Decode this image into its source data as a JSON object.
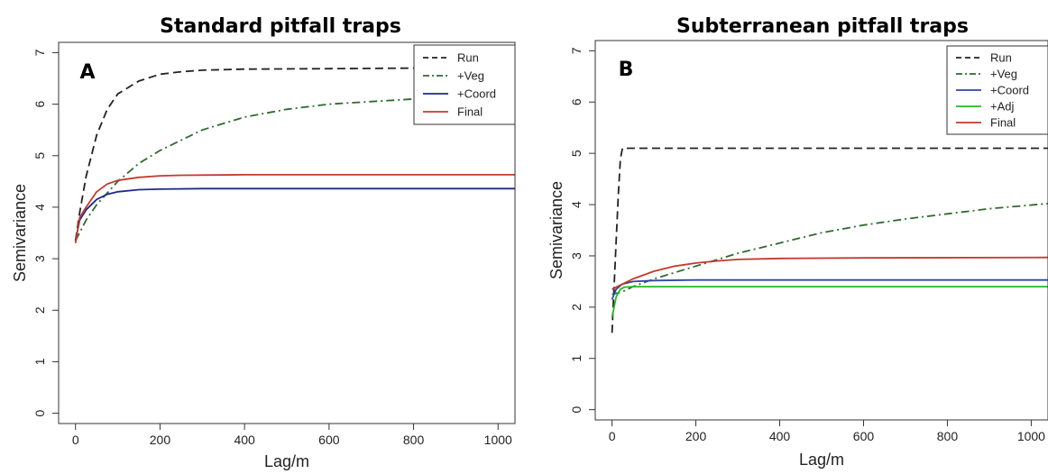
{
  "chart_data": [
    {
      "type": "line",
      "panel_label": "A",
      "title": "Standard pitfall traps",
      "xlabel": "Lag/m",
      "ylabel": "Semivariance",
      "xlim": [
        -40,
        1040
      ],
      "ylim": [
        -0.2,
        7.2
      ],
      "xticks": [
        0,
        200,
        400,
        600,
        800,
        1000
      ],
      "yticks": [
        0,
        1,
        2,
        3,
        4,
        5,
        6,
        7
      ],
      "grid": false,
      "legend_position": "top-right",
      "series": [
        {
          "name": "Run",
          "color": "#222222",
          "dash": "dashed",
          "x": [
            0,
            10,
            25,
            50,
            75,
            100,
            150,
            200,
            250,
            300,
            400,
            600,
            800,
            1040
          ],
          "y": [
            3.35,
            3.9,
            4.6,
            5.4,
            5.9,
            6.2,
            6.45,
            6.58,
            6.63,
            6.66,
            6.68,
            6.69,
            6.7,
            6.7
          ]
        },
        {
          "name": "+Veg",
          "color": "#2e6b2e",
          "dash": "dotdash",
          "x": [
            0,
            25,
            50,
            100,
            150,
            200,
            300,
            400,
            500,
            600,
            700,
            800,
            900,
            1040
          ],
          "y": [
            3.35,
            3.75,
            4.05,
            4.5,
            4.85,
            5.1,
            5.5,
            5.75,
            5.9,
            6.0,
            6.05,
            6.1,
            6.12,
            6.15
          ]
        },
        {
          "name": "+Coord",
          "color": "#1f2a8a",
          "dash": "solid",
          "x": [
            0,
            10,
            25,
            50,
            75,
            100,
            150,
            200,
            300,
            600,
            1040
          ],
          "y": [
            3.35,
            3.75,
            3.95,
            4.15,
            4.25,
            4.3,
            4.34,
            4.35,
            4.36,
            4.36,
            4.36
          ]
        },
        {
          "name": "Final",
          "color": "#c23a2e",
          "dash": "solid",
          "x": [
            0,
            10,
            25,
            50,
            75,
            100,
            150,
            200,
            250,
            400,
            1040
          ],
          "y": [
            3.3,
            3.8,
            4.0,
            4.3,
            4.45,
            4.52,
            4.58,
            4.61,
            4.62,
            4.63,
            4.63
          ]
        }
      ]
    },
    {
      "type": "line",
      "panel_label": "B",
      "title": "Subterranean pitfall traps",
      "xlabel": "Lag/m",
      "ylabel": "Semivariance",
      "xlim": [
        -40,
        1040
      ],
      "ylim": [
        -0.2,
        7.2
      ],
      "xticks": [
        0,
        200,
        400,
        600,
        800,
        1000
      ],
      "yticks": [
        0,
        1,
        2,
        3,
        4,
        5,
        6,
        7
      ],
      "grid": false,
      "legend_position": "top-right",
      "series": [
        {
          "name": "Run",
          "color": "#222222",
          "dash": "dashed",
          "x": [
            0,
            5,
            10,
            15,
            20,
            25,
            50,
            100,
            1040
          ],
          "y": [
            1.5,
            2.4,
            3.3,
            4.2,
            4.9,
            5.1,
            5.1,
            5.1,
            5.1
          ]
        },
        {
          "name": "+Veg",
          "color": "#2e6b2e",
          "dash": "dotdash",
          "x": [
            0,
            25,
            50,
            100,
            200,
            300,
            400,
            500,
            600,
            700,
            800,
            900,
            1040
          ],
          "y": [
            2.25,
            2.3,
            2.4,
            2.55,
            2.8,
            3.05,
            3.25,
            3.45,
            3.6,
            3.72,
            3.82,
            3.92,
            4.02
          ]
        },
        {
          "name": "+Coord",
          "color": "#3344aa",
          "dash": "solid",
          "x": [
            0,
            10,
            25,
            50,
            100,
            200,
            1040
          ],
          "y": [
            2.15,
            2.35,
            2.45,
            2.5,
            2.52,
            2.53,
            2.53
          ]
        },
        {
          "name": "+Adj",
          "color": "#22bb22",
          "dash": "solid",
          "x": [
            0,
            5,
            10,
            20,
            30,
            50,
            1040
          ],
          "y": [
            1.8,
            2.0,
            2.2,
            2.35,
            2.39,
            2.4,
            2.4
          ]
        },
        {
          "name": "Final",
          "color": "#c23a2e",
          "dash": "solid",
          "x": [
            0,
            25,
            50,
            100,
            150,
            200,
            250,
            300,
            400,
            600,
            1040
          ],
          "y": [
            2.35,
            2.45,
            2.55,
            2.7,
            2.8,
            2.86,
            2.9,
            2.93,
            2.95,
            2.96,
            2.97
          ]
        }
      ]
    }
  ]
}
